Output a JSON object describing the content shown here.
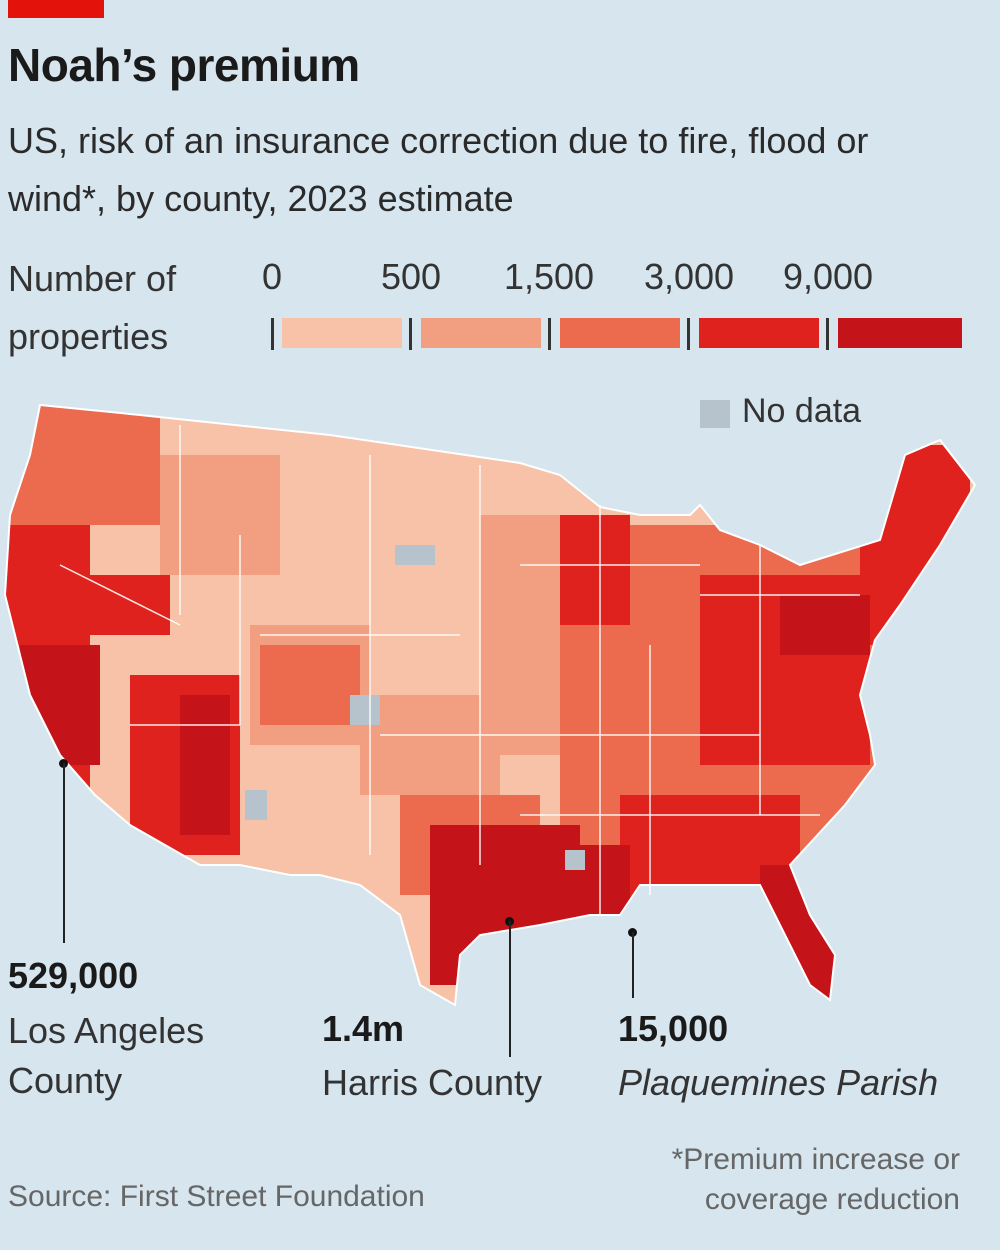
{
  "header": {
    "title": "Noah’s premium",
    "subtitle": "US, risk of an insurance correction due to fire, flood or wind*, by county, 2023 estimate"
  },
  "legend": {
    "title_line1": "Number of",
    "title_line2": "properties",
    "ticks": [
      "0",
      "500",
      "1,500",
      "3,000",
      "9,000"
    ],
    "colors": [
      "#f7c2a7",
      "#f29e80",
      "#ec6a4e",
      "#e0221e",
      "#c5131a"
    ],
    "no_data_label": "No data",
    "no_data_color": "#b6c2cc"
  },
  "callouts": {
    "la": {
      "value": "529,000",
      "label_line1": "Los Angeles",
      "label_line2": "County"
    },
    "harris": {
      "value": "1.4m",
      "label": "Harris County"
    },
    "plaquemines": {
      "value": "15,000",
      "label": "Plaquemines Parish"
    }
  },
  "footer": {
    "source": "Source: First Street Foundation",
    "footnote_line1": "*Premium increase or",
    "footnote_line2": "coverage reduction"
  },
  "colors": {
    "brand_red": "#e3120b",
    "background": "#d6e5ee"
  }
}
